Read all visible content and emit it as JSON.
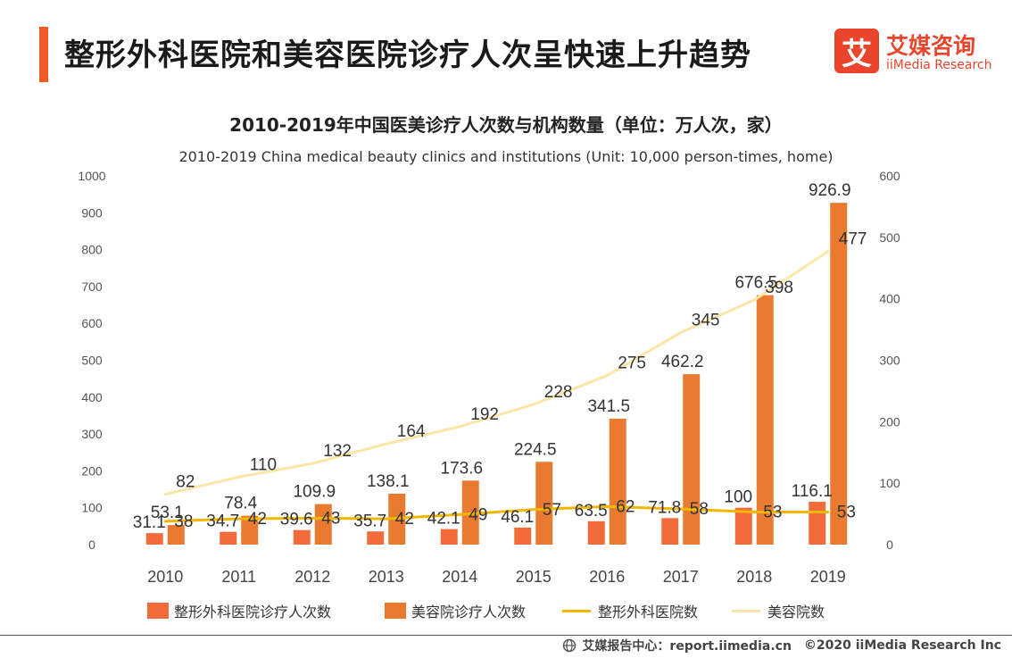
{
  "header": {
    "title": "整形外科医院和美容医院诊疗人次呈快速上升趋势",
    "logo_mark": "艾",
    "logo_cn": "艾媒咨询",
    "logo_en": "iiMedia Research"
  },
  "colors": {
    "accent": "#f05a28",
    "plastic_visits": "#f26b3a",
    "beauty_visits": "#e87b2f",
    "plastic_hospitals": "#f2b800",
    "beauty_hospitals": "#fbe6a8"
  },
  "chart_data": {
    "type": "bar",
    "title": "2010-2019年中国医美诊疗人次数与机构数量（单位：万人次，家）",
    "subtitle": "2010-2019 China medical beauty clinics and institutions (Unit: 10,000 person-times, home)",
    "categories": [
      "2010",
      "2011",
      "2012",
      "2013",
      "2014",
      "2015",
      "2016",
      "2017",
      "2018",
      "2019"
    ],
    "left_axis": {
      "min": 0,
      "max": 1000,
      "ticks": [
        "0",
        "100",
        "200",
        "300",
        "400",
        "500",
        "600",
        "700",
        "800",
        "900",
        "1000"
      ]
    },
    "right_axis": {
      "min": 0,
      "max": 600,
      "ticks": [
        "0",
        "100",
        "200",
        "300",
        "400",
        "500",
        "600"
      ]
    },
    "series": [
      {
        "name": "整形外科医院诊疗人次数",
        "kind": "bar",
        "axis": "left",
        "values": [
          31.1,
          34.7,
          39.6,
          35.7,
          42.1,
          46.1,
          63.5,
          71.8,
          100,
          116.1
        ],
        "labels": [
          "31.1",
          "34.7",
          "39.6",
          "35.7",
          "42.1",
          "46.1",
          "63.5",
          "71.8",
          "100",
          "116.1"
        ]
      },
      {
        "name": "美容院诊疗人次数",
        "kind": "bar",
        "axis": "left",
        "values": [
          53.1,
          78.4,
          109.9,
          138.1,
          173.6,
          224.5,
          341.5,
          462.2,
          676.5,
          926.9
        ],
        "labels": [
          "53.1",
          "78.4",
          "109.9",
          "138.1",
          "173.6",
          "224.5",
          "341.5",
          "462.2",
          "676.5",
          "926.9"
        ]
      },
      {
        "name": "整形外科医院数",
        "kind": "line",
        "axis": "right",
        "values": [
          38,
          42,
          43,
          42,
          49,
          57,
          62,
          58,
          53,
          53
        ],
        "labels": [
          "38",
          "42",
          "43",
          "42",
          "49",
          "57",
          "62",
          "58",
          "53",
          "53"
        ]
      },
      {
        "name": "美容院数",
        "kind": "line",
        "axis": "right",
        "values": [
          82,
          110,
          132,
          164,
          192,
          228,
          275,
          345,
          398,
          477
        ],
        "labels": [
          "82",
          "110",
          "132",
          "164",
          "192",
          "228",
          "275",
          "345",
          "398",
          "477"
        ]
      }
    ]
  },
  "footer": {
    "source": "艾媒报告中心：report.iimedia.cn",
    "copyright": "©2020  iiMedia Research  Inc"
  }
}
